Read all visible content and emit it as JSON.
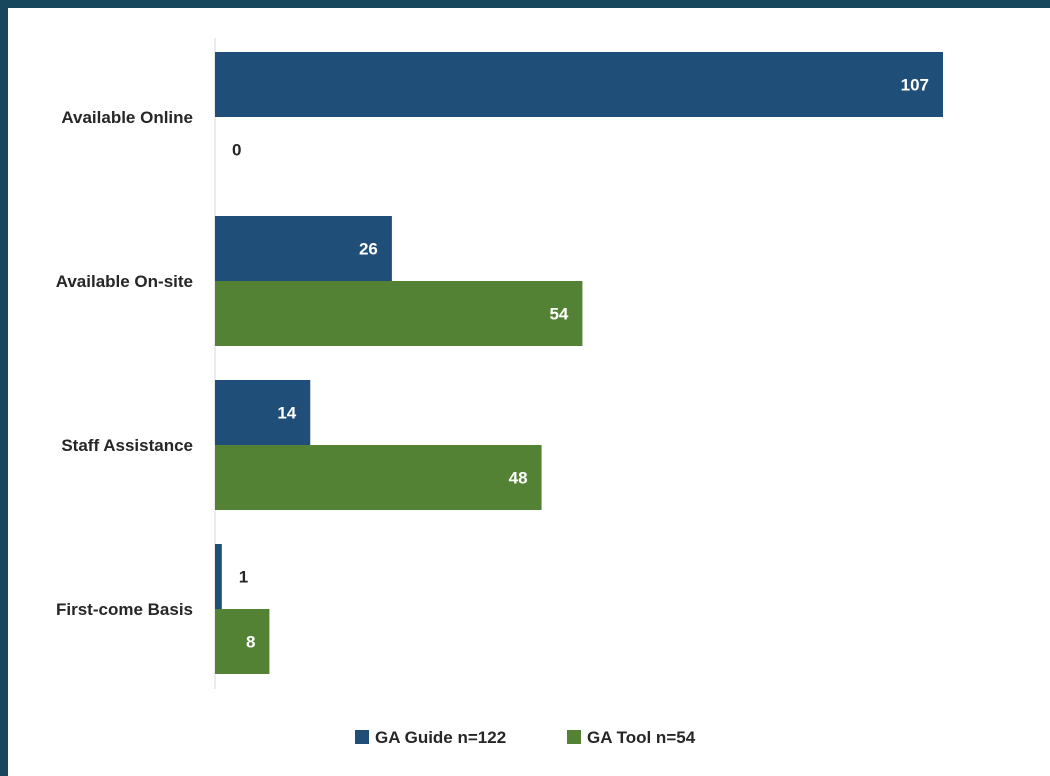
{
  "chart_data": {
    "type": "bar",
    "orientation": "horizontal",
    "categories": [
      "Available Online",
      "Available On-site",
      "Staff Assistance",
      "First-come Basis"
    ],
    "series": [
      {
        "name": "GA Guide n=122",
        "values": [
          107,
          26,
          14,
          1
        ],
        "color": "#1f4e79"
      },
      {
        "name": "GA Tool n=54",
        "values": [
          0,
          54,
          48,
          8
        ],
        "color": "#548235"
      }
    ],
    "xlim": [
      0,
      107
    ],
    "grid": false,
    "data_labels": true,
    "legend_position": "bottom"
  }
}
